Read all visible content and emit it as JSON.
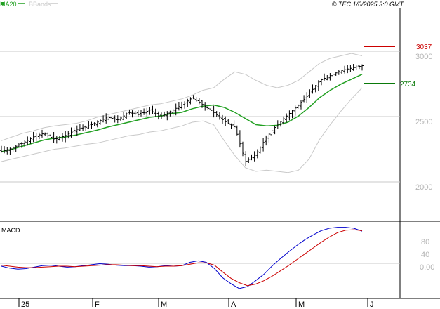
{
  "legend": {
    "ma_label": "MA20",
    "bb_label": "BBands",
    "ma_color": "#22a022",
    "bb_color": "#c8c8c8"
  },
  "header": {
    "copyright": "© TEC 1/6/2025 3:0 GMT"
  },
  "macd_panel": {
    "label": "MACD"
  },
  "colors": {
    "grid": "#c8c8c8",
    "bars": "#000000",
    "resistance": "#cc0000",
    "support": "#0a7a0a",
    "macd_line": "#0000cc",
    "signal_line": "#cc0000",
    "axis_text": "#b4b4b4"
  },
  "chart_data": [
    {
      "type": "line",
      "subtype": "ohlc-bars",
      "panel": "price",
      "title": "",
      "x_tick_labels": [
        "25",
        "F",
        "M",
        "A",
        "M",
        "J"
      ],
      "y_tick_labels": [
        "3000",
        "2500",
        "2000"
      ],
      "ylim": [
        1700,
        3300
      ],
      "grid": true,
      "levels": [
        {
          "label": "3037",
          "value": 3037,
          "color": "#cc0000"
        },
        {
          "label": "2734",
          "value": 2734,
          "color": "#0a7a0a"
        }
      ],
      "legend": [
        "MA20",
        "BBands"
      ],
      "legend_position": "top-left",
      "close_path": [
        2180,
        2210,
        2250,
        2300,
        2330,
        2280,
        2310,
        2360,
        2380,
        2420,
        2460,
        2440,
        2500,
        2480,
        2520,
        2460,
        2510,
        2560,
        2620,
        2560,
        2500,
        2430,
        2380,
        2100,
        2160,
        2300,
        2400,
        2480,
        2560,
        2650,
        2760,
        2800,
        2840,
        2860,
        2880
      ],
      "ohlc_bar_count": 125,
      "series": [
        {
          "name": "MA20",
          "values": [
            2180,
            2200,
            2225,
            2250,
            2275,
            2290,
            2300,
            2315,
            2335,
            2355,
            2380,
            2400,
            2420,
            2440,
            2460,
            2470,
            2490,
            2500,
            2530,
            2550,
            2560,
            2540,
            2500,
            2450,
            2400,
            2390,
            2395,
            2420,
            2470,
            2540,
            2620,
            2680,
            2730,
            2770,
            2810
          ]
        },
        {
          "name": "BBands upper",
          "values": [
            2270,
            2300,
            2330,
            2350,
            2375,
            2390,
            2400,
            2410,
            2430,
            2460,
            2480,
            2500,
            2520,
            2540,
            2560,
            2570,
            2590,
            2610,
            2640,
            2680,
            2700,
            2770,
            2830,
            2810,
            2760,
            2720,
            2700,
            2720,
            2760,
            2830,
            2900,
            2940,
            2960,
            2980,
            2960
          ]
        },
        {
          "name": "BBands lower",
          "values": [
            2100,
            2120,
            2140,
            2160,
            2180,
            2200,
            2210,
            2225,
            2240,
            2250,
            2270,
            2290,
            2310,
            2320,
            2340,
            2350,
            2370,
            2390,
            2420,
            2430,
            2400,
            2270,
            2150,
            2050,
            2020,
            2030,
            2020,
            2010,
            2030,
            2120,
            2280,
            2400,
            2510,
            2610,
            2700
          ]
        }
      ]
    },
    {
      "type": "line",
      "panel": "macd",
      "title": "MACD",
      "x_tick_labels": [
        "25",
        "F",
        "M",
        "A",
        "M",
        "J"
      ],
      "y_tick_labels": [
        "80",
        "40",
        "0.00"
      ],
      "ylim": [
        -50,
        80
      ],
      "grid": true,
      "series": [
        {
          "name": "MACD",
          "color": "#0000cc",
          "values": [
            2,
            -2,
            -4,
            -3,
            0,
            3,
            4,
            2,
            0,
            1,
            3,
            5,
            7,
            6,
            4,
            3,
            3,
            2,
            0,
            1,
            3,
            2,
            3,
            10,
            13,
            10,
            -3,
            -22,
            -34,
            -44,
            -40,
            -28,
            -15,
            2,
            17,
            31,
            44,
            56,
            66,
            75,
            80,
            82,
            82,
            80,
            74
          ]
        },
        {
          "name": "Signal",
          "color": "#cc0000",
          "values": [
            4,
            2,
            0,
            -1,
            -1,
            0,
            1,
            2,
            2,
            1,
            2,
            3,
            4,
            5,
            5,
            4,
            3,
            3,
            2,
            1,
            2,
            2,
            3,
            6,
            9,
            9,
            4,
            -10,
            -23,
            -32,
            -38,
            -35,
            -28,
            -19,
            -8,
            3,
            15,
            27,
            39,
            51,
            62,
            71,
            76,
            77,
            75
          ]
        }
      ]
    }
  ]
}
